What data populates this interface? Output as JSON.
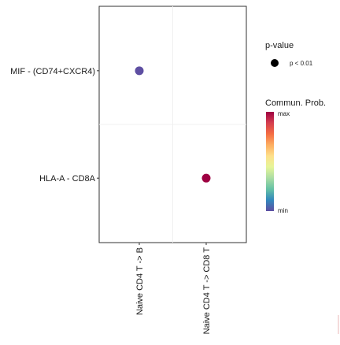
{
  "chart_data": {
    "type": "scatter",
    "x_categories": [
      "Naive CD4 T -> B",
      "Naive CD4 T -> CD8 T"
    ],
    "y_categories": [
      "MIF - (CD74+CXCR4)",
      "HLA-A - CD8A"
    ],
    "points": [
      {
        "x": "Naive CD4 T -> B",
        "y": "MIF - (CD74+CXCR4)",
        "prob": 0.0,
        "pvalue": "p < 0.01"
      },
      {
        "x": "Naive CD4 T -> CD8 T",
        "y": "HLA-A - CD8A",
        "prob": 1.0,
        "pvalue": "p < 0.01"
      }
    ],
    "legend": {
      "size_title": "p-value",
      "size_entries": [
        "p < 0.01"
      ],
      "color_title": "Commun. Prob.",
      "color_max_label": "max",
      "color_min_label": "min",
      "colors": [
        "#5e4fa2",
        "#3288bd",
        "#66c2a5",
        "#abdda4",
        "#e6f598",
        "#fee08b",
        "#fdae61",
        "#f46d43",
        "#d53e4f",
        "#9e0142"
      ]
    },
    "grid": true,
    "legend_position": "right"
  }
}
